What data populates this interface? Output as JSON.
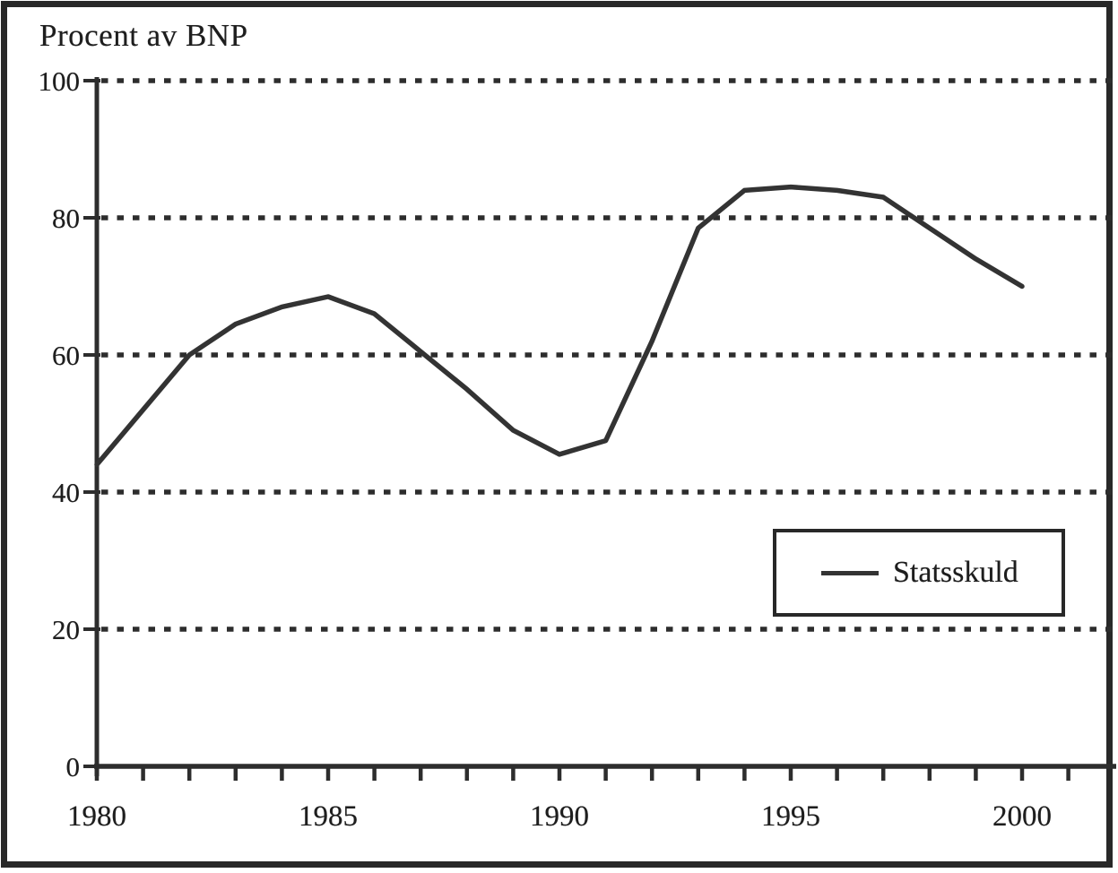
{
  "title": "Procent av BNP",
  "legend": {
    "label": "Statsskuld"
  },
  "colors": {
    "ink": "#2d2d2d",
    "line": "#333333",
    "paper": "#ffffff",
    "text": "#1e1e1e"
  },
  "chart_data": {
    "type": "line",
    "title": "Procent av BNP",
    "ylabel": "Procent av BNP",
    "xlabel": "",
    "units": "percent of GDP",
    "x": [
      1980,
      1981,
      1982,
      1983,
      1984,
      1985,
      1986,
      1987,
      1988,
      1989,
      1990,
      1991,
      1992,
      1993,
      1994,
      1995,
      1996,
      1997,
      1998,
      1999,
      2000
    ],
    "series": [
      {
        "name": "Statsskuld",
        "style": "solid",
        "values": [
          44,
          52,
          60,
          64.5,
          67,
          68.5,
          66,
          60.5,
          55,
          49,
          45.5,
          47.5,
          62,
          78.5,
          84,
          84.5,
          84,
          83,
          78.5,
          74,
          70
        ]
      }
    ],
    "x_tick_labels": [
      "1980",
      "1985",
      "1990",
      "1995",
      "2000"
    ],
    "x_axis_tick_range": [
      1980,
      2001
    ],
    "x_minor_tick_step_years": 1,
    "y_ticks": [
      0,
      20,
      40,
      60,
      80,
      100
    ],
    "ylim": [
      0,
      100
    ],
    "grid": "horizontal dotted lines at y = 20,40,60,80,100",
    "legend_position": "inset right, between the 20 and 40 gridlines",
    "frame": "thick black border around entire figure"
  }
}
